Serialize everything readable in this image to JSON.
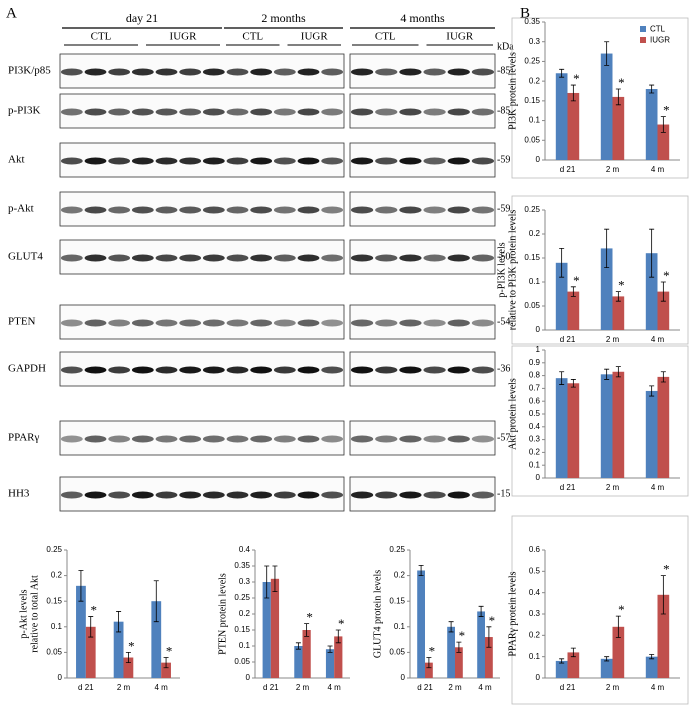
{
  "panel_labels": [
    "A",
    "B"
  ],
  "blot": {
    "timepoints": [
      "day 21",
      "2 months",
      "4 months"
    ],
    "groups": [
      "CTL",
      "IUGR"
    ],
    "kda_header": "kDa",
    "rows": [
      {
        "label": "PI3K/p85",
        "kda": "-85"
      },
      {
        "label": "p-PI3K",
        "kda": "-85"
      },
      {
        "label": "Akt",
        "kda": "-59"
      },
      {
        "label": "p-Akt",
        "kda": "-59"
      },
      {
        "label": "GLUT4",
        "kda": "-50"
      },
      {
        "label": "PTEN",
        "kda": "-54"
      },
      {
        "label": "GAPDH",
        "kda": "-36"
      },
      {
        "label": "PPARγ",
        "kda": "-57"
      },
      {
        "label": "HH3",
        "kda": "-15"
      }
    ]
  },
  "chart_data": [
    {
      "type": "bar",
      "ylabel": [
        "PI3K protein levels"
      ],
      "categories": [
        "d 21",
        "2 m",
        "4 m"
      ],
      "series": [
        {
          "name": "CTL",
          "color": "#4f81bd",
          "values": [
            0.22,
            0.27,
            0.18
          ],
          "errors": [
            0.01,
            0.03,
            0.01
          ]
        },
        {
          "name": "IUGR",
          "color": "#c0504d",
          "values": [
            0.17,
            0.16,
            0.09
          ],
          "errors": [
            0.02,
            0.02,
            0.02
          ],
          "significance": [
            "*",
            "*",
            "*"
          ]
        }
      ],
      "ylim": [
        0,
        0.35
      ],
      "yticks": [
        0,
        0.05,
        0.1,
        0.15,
        0.2,
        0.25,
        0.3,
        0.35
      ],
      "legend": "upper right"
    },
    {
      "type": "bar",
      "ylabel": [
        "p-PI3K levels",
        "relative to PI3K protein levels"
      ],
      "categories": [
        "d 21",
        "2 m",
        "4 m"
      ],
      "series": [
        {
          "color": "#4f81bd",
          "values": [
            0.14,
            0.17,
            0.16
          ],
          "errors": [
            0.03,
            0.04,
            0.05
          ]
        },
        {
          "color": "#c0504d",
          "values": [
            0.08,
            0.07,
            0.08
          ],
          "errors": [
            0.01,
            0.01,
            0.02
          ],
          "significance": [
            "*",
            "*",
            "*"
          ]
        }
      ],
      "ylim": [
        0,
        0.25
      ],
      "yticks": [
        0,
        0.05,
        0.1,
        0.15,
        0.2,
        0.25
      ]
    },
    {
      "type": "bar",
      "ylabel": [
        "Akt protein levels"
      ],
      "categories": [
        "d 21",
        "2 m",
        "4 m"
      ],
      "series": [
        {
          "color": "#4f81bd",
          "values": [
            0.78,
            0.81,
            0.68
          ],
          "errors": [
            0.05,
            0.04,
            0.04
          ]
        },
        {
          "color": "#c0504d",
          "values": [
            0.74,
            0.83,
            0.79
          ],
          "errors": [
            0.03,
            0.04,
            0.04
          ]
        }
      ],
      "ylim": [
        0,
        1
      ],
      "yticks": [
        0,
        0.1,
        0.2,
        0.3,
        0.4,
        0.5,
        0.6,
        0.7,
        0.8,
        0.9,
        1
      ]
    },
    {
      "type": "bar",
      "ylabel": [
        "PPARγ protein levels"
      ],
      "categories": [
        "d 21",
        "2 m",
        "4 m"
      ],
      "series": [
        {
          "color": "#4f81bd",
          "values": [
            0.08,
            0.09,
            0.1
          ],
          "errors": [
            0.01,
            0.01,
            0.01
          ]
        },
        {
          "color": "#c0504d",
          "values": [
            0.12,
            0.24,
            0.39
          ],
          "errors": [
            0.02,
            0.05,
            0.09
          ],
          "significance": [
            null,
            "*",
            "*"
          ]
        }
      ],
      "ylim": [
        0,
        0.6
      ],
      "yticks": [
        0,
        0.1,
        0.2,
        0.3,
        0.4,
        0.5,
        0.6
      ]
    },
    {
      "type": "bar",
      "ylabel": [
        "p-Akt levels",
        "relative to total Akt"
      ],
      "categories": [
        "d 21",
        "2 m",
        "4 m"
      ],
      "series": [
        {
          "color": "#4f81bd",
          "values": [
            0.18,
            0.11,
            0.15
          ],
          "errors": [
            0.03,
            0.02,
            0.04
          ]
        },
        {
          "color": "#c0504d",
          "values": [
            0.1,
            0.04,
            0.03
          ],
          "errors": [
            0.02,
            0.01,
            0.01
          ],
          "significance": [
            "*",
            "*",
            "*"
          ]
        }
      ],
      "ylim": [
        0,
        0.25
      ],
      "yticks": [
        0,
        0.05,
        0.1,
        0.15,
        0.2,
        0.25
      ]
    },
    {
      "type": "bar",
      "ylabel": [
        "PTEN protein levels"
      ],
      "categories": [
        "d 21",
        "2 m",
        "4 m"
      ],
      "series": [
        {
          "color": "#4f81bd",
          "values": [
            0.3,
            0.1,
            0.09
          ],
          "errors": [
            0.05,
            0.01,
            0.01
          ]
        },
        {
          "color": "#c0504d",
          "values": [
            0.31,
            0.15,
            0.13
          ],
          "errors": [
            0.04,
            0.02,
            0.02
          ],
          "significance": [
            null,
            "*",
            "*"
          ]
        }
      ],
      "ylim": [
        0,
        0.4
      ],
      "yticks": [
        0,
        0.05,
        0.1,
        0.15,
        0.2,
        0.25,
        0.3,
        0.35,
        0.4
      ]
    },
    {
      "type": "bar",
      "ylabel": [
        "GLUT4 protein levels"
      ],
      "categories": [
        "d 21",
        "2 m",
        "4 m"
      ],
      "series": [
        {
          "color": "#4f81bd",
          "values": [
            0.21,
            0.1,
            0.13
          ],
          "errors": [
            0.01,
            0.01,
            0.01
          ]
        },
        {
          "color": "#c0504d",
          "values": [
            0.03,
            0.06,
            0.08
          ],
          "errors": [
            0.01,
            0.01,
            0.02
          ],
          "significance": [
            "*",
            "*",
            "*"
          ]
        }
      ],
      "ylim": [
        0,
        0.25
      ],
      "yticks": [
        0,
        0.05,
        0.1,
        0.15,
        0.2,
        0.25
      ]
    }
  ]
}
